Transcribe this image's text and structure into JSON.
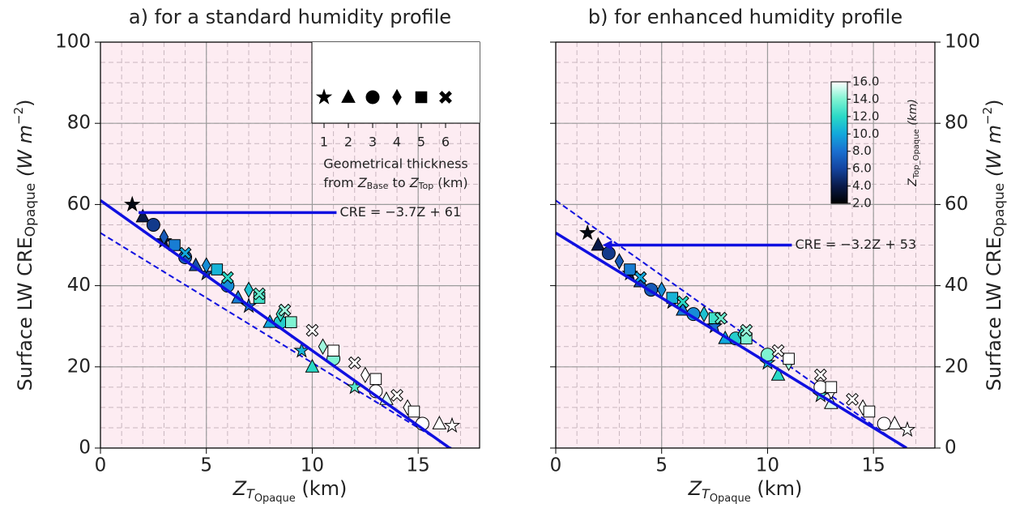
{
  "chart_data": [
    {
      "type": "scatter",
      "title": "a) for a standard humidity profile",
      "xlabel": [
        "Z",
        "T",
        "Opaque",
        " (km)"
      ],
      "ylabel": [
        "Surface LW CRE",
        "Opaque",
        " (W m",
        "−2",
        ")"
      ],
      "yaxis_side": "left",
      "xlim": [
        0,
        17.9
      ],
      "ylim": [
        0,
        100
      ],
      "xticks": [
        0,
        5,
        10,
        15
      ],
      "yticks": [
        0,
        20,
        40,
        60,
        80,
        100
      ],
      "grid": true,
      "minor_grid": true,
      "series": [
        {
          "name": "1",
          "marker": "star",
          "x": [
            1.5,
            3,
            5,
            7,
            9.5,
            12,
            16.6
          ],
          "y": [
            60,
            51,
            43,
            35,
            24,
            15,
            5.5
          ],
          "z": [
            2.5,
            4,
            6,
            8,
            10.5,
            13,
            16
          ]
        },
        {
          "name": "2",
          "marker": "triangle",
          "x": [
            2,
            4.5,
            6.5,
            8,
            10,
            13.5,
            16
          ],
          "y": [
            57,
            45,
            37,
            31,
            20,
            12,
            6
          ],
          "z": [
            4,
            6.5,
            8.5,
            10,
            12,
            15.5,
            16
          ]
        },
        {
          "name": "3",
          "marker": "circle",
          "x": [
            2.5,
            4,
            6,
            8.5,
            11,
            13,
            15.2
          ],
          "y": [
            55,
            47,
            40,
            31,
            22,
            14,
            6
          ],
          "z": [
            5.5,
            7,
            9,
            11.5,
            14,
            16,
            16
          ]
        },
        {
          "name": "4",
          "marker": "diamond",
          "x": [
            3,
            5,
            7,
            8.5,
            10.5,
            12.5,
            14.5
          ],
          "y": [
            52,
            45,
            39,
            33,
            25,
            18,
            10
          ],
          "z": [
            7,
            9,
            11,
            12.5,
            14.5,
            16,
            16
          ]
        },
        {
          "name": "5",
          "marker": "square",
          "x": [
            3.5,
            5.5,
            7.5,
            9,
            11,
            13,
            14.8
          ],
          "y": [
            50,
            44,
            37,
            31,
            24,
            17,
            9
          ],
          "z": [
            8.5,
            10.5,
            12.5,
            14,
            16,
            16,
            16
          ]
        },
        {
          "name": "6",
          "marker": "x",
          "x": [
            4,
            6,
            7.5,
            8.7,
            10,
            12,
            14
          ],
          "y": [
            48,
            42,
            38,
            34,
            29,
            21,
            13
          ],
          "z": [
            10,
            12,
            13.5,
            14.5,
            16,
            16,
            16
          ]
        }
      ],
      "fits": [
        {
          "slope": -3.7,
          "intercept": 61,
          "style": "solid"
        },
        {
          "slope": -3.2,
          "intercept": 53,
          "style": "dashed"
        }
      ],
      "fit_color": "#1010e0",
      "annotation": "CRE = −3.7Z + 61",
      "legend": {
        "title": [
          "Geometrical thickness",
          "from ",
          "Z",
          "Base",
          " to ",
          "Z",
          "Top",
          " (km)"
        ]
      }
    },
    {
      "type": "scatter",
      "title": "b) for enhanced humidity profile",
      "xlabel": [
        "Z",
        "T",
        "Opaque",
        " (km)"
      ],
      "ylabel": [
        "Surface LW CRE",
        "Opaque",
        " (W m",
        "−2",
        ")"
      ],
      "yaxis_side": "right",
      "xlim": [
        0,
        17.9
      ],
      "ylim": [
        0,
        100
      ],
      "xticks": [
        0,
        5,
        10,
        15
      ],
      "yticks": [
        0,
        20,
        40,
        60,
        80,
        100
      ],
      "grid": true,
      "minor_grid": true,
      "series": [
        {
          "name": "1",
          "marker": "star",
          "x": [
            1.5,
            3.5,
            5.5,
            7.5,
            10,
            12.5,
            16.6
          ],
          "y": [
            53,
            43,
            36,
            30,
            21,
            13,
            4.5
          ],
          "z": [
            2.5,
            4,
            6,
            8,
            10.5,
            13,
            16
          ]
        },
        {
          "name": "2",
          "marker": "triangle",
          "x": [
            2,
            4,
            6,
            8,
            10.5,
            13,
            16
          ],
          "y": [
            50,
            41,
            34,
            27,
            18,
            11,
            6
          ],
          "z": [
            4,
            6.5,
            8.5,
            10,
            12,
            15.5,
            16
          ]
        },
        {
          "name": "3",
          "marker": "circle",
          "x": [
            2.5,
            4.5,
            6.5,
            8.5,
            10,
            12.5,
            15.5
          ],
          "y": [
            48,
            39,
            33,
            27,
            23,
            15,
            6
          ],
          "z": [
            5.5,
            7,
            9,
            11.5,
            14,
            16,
            16
          ]
        },
        {
          "name": "4",
          "marker": "diamond",
          "x": [
            3,
            5,
            7,
            8.8,
            11,
            13,
            14.5
          ],
          "y": [
            46,
            39,
            33,
            28,
            21,
            14,
            10
          ],
          "z": [
            7,
            9,
            11,
            12.5,
            14.5,
            16,
            16
          ]
        },
        {
          "name": "5",
          "marker": "square",
          "x": [
            3.5,
            5.5,
            7.5,
            9,
            11,
            13,
            14.8
          ],
          "y": [
            44,
            37,
            32,
            27,
            22,
            15,
            9
          ],
          "z": [
            8.5,
            10.5,
            12.5,
            14,
            16,
            16,
            16
          ]
        },
        {
          "name": "6",
          "marker": "x",
          "x": [
            4,
            6,
            7.8,
            9,
            10.5,
            12.5,
            14
          ],
          "y": [
            42,
            36,
            32,
            29,
            24,
            18,
            12
          ],
          "z": [
            10,
            12,
            13.5,
            14.5,
            16,
            16,
            16
          ]
        }
      ],
      "fits": [
        {
          "slope": -3.2,
          "intercept": 53,
          "style": "solid"
        },
        {
          "slope": -3.7,
          "intercept": 61,
          "style": "dashed"
        }
      ],
      "fit_color": "#1010e0",
      "annotation": "CRE = −3.2Z + 53",
      "colorbar": {
        "label": [
          "Z",
          "Top_Opaque",
          " (km)"
        ],
        "lim": [
          2,
          16
        ],
        "ticks": [
          {
            "value": 2,
            "label": "2.0"
          },
          {
            "value": 4,
            "label": "4.0"
          },
          {
            "value": 6,
            "label": "6.0"
          },
          {
            "value": 8,
            "label": "8.0"
          },
          {
            "value": 10,
            "label": "10.0"
          },
          {
            "value": 12,
            "label": "12.0"
          },
          {
            "value": 14,
            "label": "14.0"
          },
          {
            "value": 16,
            "label": "16.0"
          }
        ],
        "colors": [
          "#000000",
          "#0a1a4a",
          "#1444a0",
          "#1a6fd0",
          "#12a8dc",
          "#2ad9c6",
          "#7ff3d2",
          "#ffffff"
        ]
      }
    }
  ]
}
